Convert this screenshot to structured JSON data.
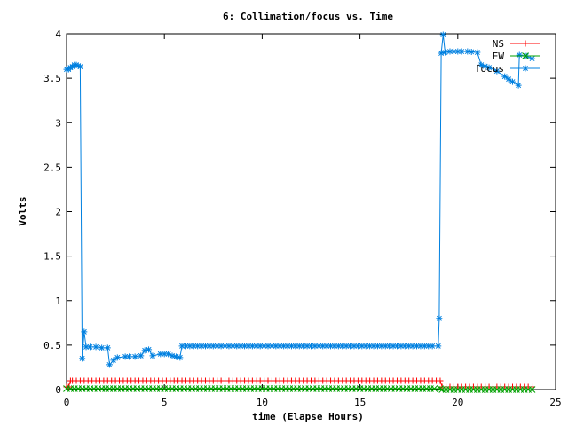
{
  "chart_data": {
    "type": "line",
    "title": "6: Collimation/focus vs. Time",
    "xlabel": "time (Elapse Hours)",
    "ylabel": "Volts",
    "xlim": [
      0,
      25
    ],
    "ylim": [
      0,
      4
    ],
    "xticks": [
      "0",
      "5",
      "10",
      "15",
      "20",
      "25"
    ],
    "yticks": [
      "0",
      "0.5",
      "1",
      "1.5",
      "2",
      "2.5",
      "3",
      "3.5",
      "4"
    ],
    "grid": false,
    "legend_position": "top-right",
    "series": [
      {
        "name": "NS",
        "color": "#ff0000",
        "marker": "plus",
        "points": [
          [
            0,
            0.03
          ],
          [
            0.1,
            0.03
          ],
          [
            0.2,
            0.1
          ],
          [
            0.3,
            0.1
          ],
          [
            19.1,
            0.1
          ],
          [
            19.2,
            0.03
          ],
          [
            23.8,
            0.03
          ]
        ]
      },
      {
        "name": "EW",
        "color": "#00a000",
        "marker": "x",
        "points": [
          [
            0,
            0.01
          ],
          [
            19.1,
            0.01
          ],
          [
            19.2,
            0.0
          ],
          [
            23.8,
            0.0
          ]
        ]
      },
      {
        "name": "focus",
        "color": "#0080e0",
        "marker": "star",
        "points": [
          [
            0,
            3.6
          ],
          [
            0.1,
            3.6
          ],
          [
            0.2,
            3.62
          ],
          [
            0.3,
            3.63
          ],
          [
            0.4,
            3.65
          ],
          [
            0.5,
            3.65
          ],
          [
            0.6,
            3.64
          ],
          [
            0.7,
            3.63
          ],
          [
            0.8,
            0.35
          ],
          [
            0.9,
            0.65
          ],
          [
            1.0,
            0.48
          ],
          [
            1.2,
            0.48
          ],
          [
            1.5,
            0.48
          ],
          [
            1.8,
            0.47
          ],
          [
            2.1,
            0.47
          ],
          [
            2.2,
            0.28
          ],
          [
            2.4,
            0.33
          ],
          [
            2.6,
            0.36
          ],
          [
            3.0,
            0.37
          ],
          [
            3.5,
            0.37
          ],
          [
            3.8,
            0.38
          ],
          [
            4.0,
            0.44
          ],
          [
            4.2,
            0.45
          ],
          [
            4.4,
            0.38
          ],
          [
            4.8,
            0.4
          ],
          [
            5.2,
            0.4
          ],
          [
            5.4,
            0.38
          ],
          [
            5.6,
            0.37
          ],
          [
            5.8,
            0.36
          ],
          [
            5.9,
            0.49
          ],
          [
            19.0,
            0.49
          ],
          [
            19.05,
            0.8
          ],
          [
            19.15,
            3.78
          ],
          [
            19.25,
            3.99
          ],
          [
            19.35,
            3.79
          ],
          [
            19.6,
            3.8
          ],
          [
            20.5,
            3.8
          ],
          [
            21.0,
            3.79
          ],
          [
            21.2,
            3.65
          ],
          [
            21.6,
            3.62
          ],
          [
            22.0,
            3.58
          ],
          [
            22.4,
            3.52
          ],
          [
            22.8,
            3.46
          ],
          [
            23.1,
            3.42
          ],
          [
            23.15,
            3.76
          ],
          [
            23.5,
            3.75
          ],
          [
            23.8,
            3.72
          ]
        ]
      }
    ]
  }
}
